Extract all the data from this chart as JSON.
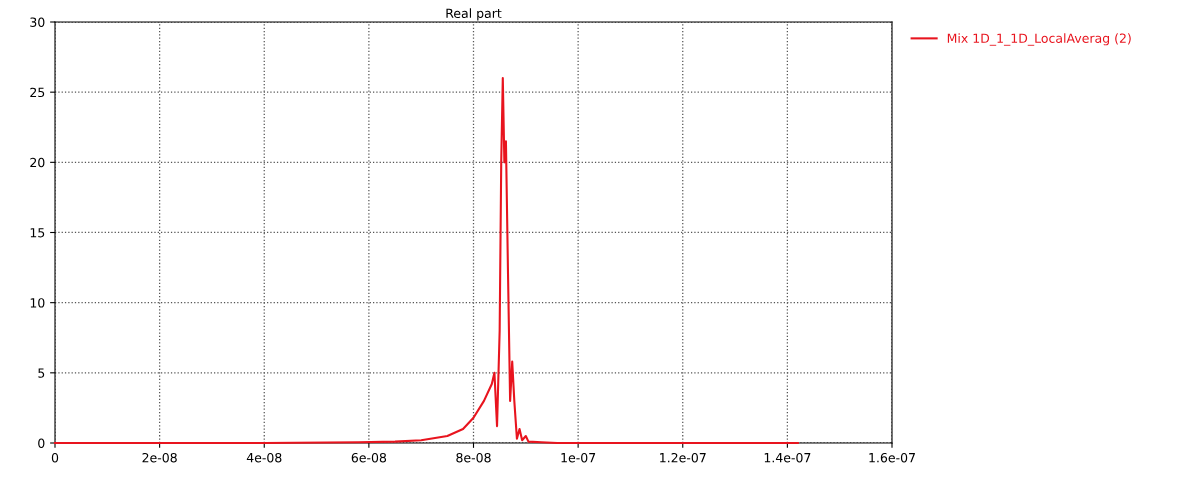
{
  "chart_data": {
    "type": "line",
    "title": "Real part",
    "x": [
      0,
      2e-08,
      4e-08,
      5.8e-08,
      6.5e-08,
      7e-08,
      7.5e-08,
      7.8e-08,
      8e-08,
      8.2e-08,
      8.35e-08,
      8.4e-08,
      8.45e-08,
      8.5e-08,
      8.53e-08,
      8.56e-08,
      8.59e-08,
      8.62e-08,
      8.66e-08,
      8.7e-08,
      8.74e-08,
      8.78e-08,
      8.83e-08,
      8.88e-08,
      8.93e-08,
      9e-08,
      9.05e-08,
      9.3e-08,
      9.6e-08,
      1.2e-07,
      1.42e-07
    ],
    "series": [
      {
        "name": "Mix 1D_1_1D_LocalAverag (2)",
        "color": "#e8141e",
        "values": [
          0,
          0,
          0,
          0.05,
          0.1,
          0.2,
          0.5,
          1,
          1.8,
          3,
          4.2,
          5,
          1.2,
          8,
          20,
          26,
          20,
          21.5,
          12,
          3,
          5.8,
          3,
          0.3,
          1,
          0.2,
          0.5,
          0.1,
          0.05,
          0,
          0,
          0
        ]
      }
    ],
    "xlim": [
      0,
      1.6e-07
    ],
    "xticks": [
      0,
      {
        "value": 2e-08,
        "label": "2e-08"
      },
      {
        "value": 4e-08,
        "label": "4e-08"
      },
      {
        "value": 6e-08,
        "label": "6e-08"
      },
      {
        "value": 8e-08,
        "label": "8e-08"
      },
      {
        "value": 1e-07,
        "label": "1e-07"
      },
      {
        "value": 1.2e-07,
        "label": "1.2e-07"
      },
      {
        "value": 1.4e-07,
        "label": "1.4e-07"
      },
      {
        "value": 1.6e-07,
        "label": "1.6e-07"
      }
    ],
    "ylim": [
      0,
      30
    ],
    "yticks": [
      0,
      5,
      10,
      15,
      20,
      25,
      30
    ],
    "grid": true,
    "legend": "top right",
    "line_style": "solid",
    "marker": "none"
  }
}
